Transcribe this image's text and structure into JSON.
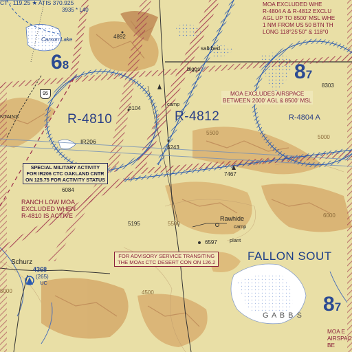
{
  "colors": {
    "terrain": "#e9dfa6",
    "hills": "#d4a865",
    "ridges": "#b9845a",
    "restricted_area": "#2a5ab0",
    "moa": "#9c2a4a",
    "lake": "#ffffff"
  },
  "top_box": {
    "frequency_line": "CT - 119.25 ★ ATIS 370.925",
    "elev_line": "3935 * L40"
  },
  "places": {
    "carson_lake": "Carson Lake",
    "biggs": "biggs",
    "salt_bed": "salt bed",
    "schurz": "Schurz",
    "rawhide": "Rawhide",
    "camp_1": "camp",
    "camp_2": "camp",
    "plant": "plant",
    "gabbs": "G A B B S",
    "fallon_south": "FALLON SOUT",
    "mtns_fragment": "NTAINS"
  },
  "airspace": {
    "r4810": "R-4810",
    "r4812": "R-4812",
    "r4804a": "R-4804 A",
    "route_ir206": "IR206",
    "moa_left": {
      "main": "6",
      "sub": "8"
    },
    "moa_right": {
      "main": "8",
      "sub": "7"
    },
    "moa_bottom": {
      "main": "8",
      "sub": "7"
    }
  },
  "notes": {
    "moa_excluded_top": [
      "MOA EXCLUDED WHE",
      "R-4804 A & R-4812 EXCLU",
      "AGL UP TO 8500' MSL WHE",
      "1 NM FROM US 50 BTN TH",
      "LONG 118°25'50\" & 118°0"
    ],
    "moa_excludes": [
      "MOA EXCLUDES AIRSPACE",
      "BETWEEN 2000' AGL & 8500' MSL"
    ],
    "special_military": [
      "SPECIAL MILITARY ACTIVITY",
      "FOR IR206 CTC OAKLAND CNTR",
      "ON 125.75 FOR ACTIVITY STATUS"
    ],
    "ranch_low": [
      "RANCH LOW MOA",
      "EXCLUDED WHEN",
      "R-4810 IS ACTIVE"
    ],
    "advisory": [
      "FOR ADVISORY SERVICE TRANSITING",
      "THE MOAs CTC DESERT CON ON 126.2"
    ],
    "bottom_right": [
      "MOA E",
      "AIRSPACE BE"
    ]
  },
  "highway": {
    "shield": "95"
  },
  "airport_schurz": {
    "elevation": "4368",
    "runway": "(265)",
    "uc": "UC"
  },
  "elevations": [
    "4892",
    "6104",
    "8303",
    "6243",
    "7467",
    "6084",
    "5195",
    "6597",
    "5500",
    "5000",
    "4500",
    "5500",
    "6000",
    "5000"
  ]
}
